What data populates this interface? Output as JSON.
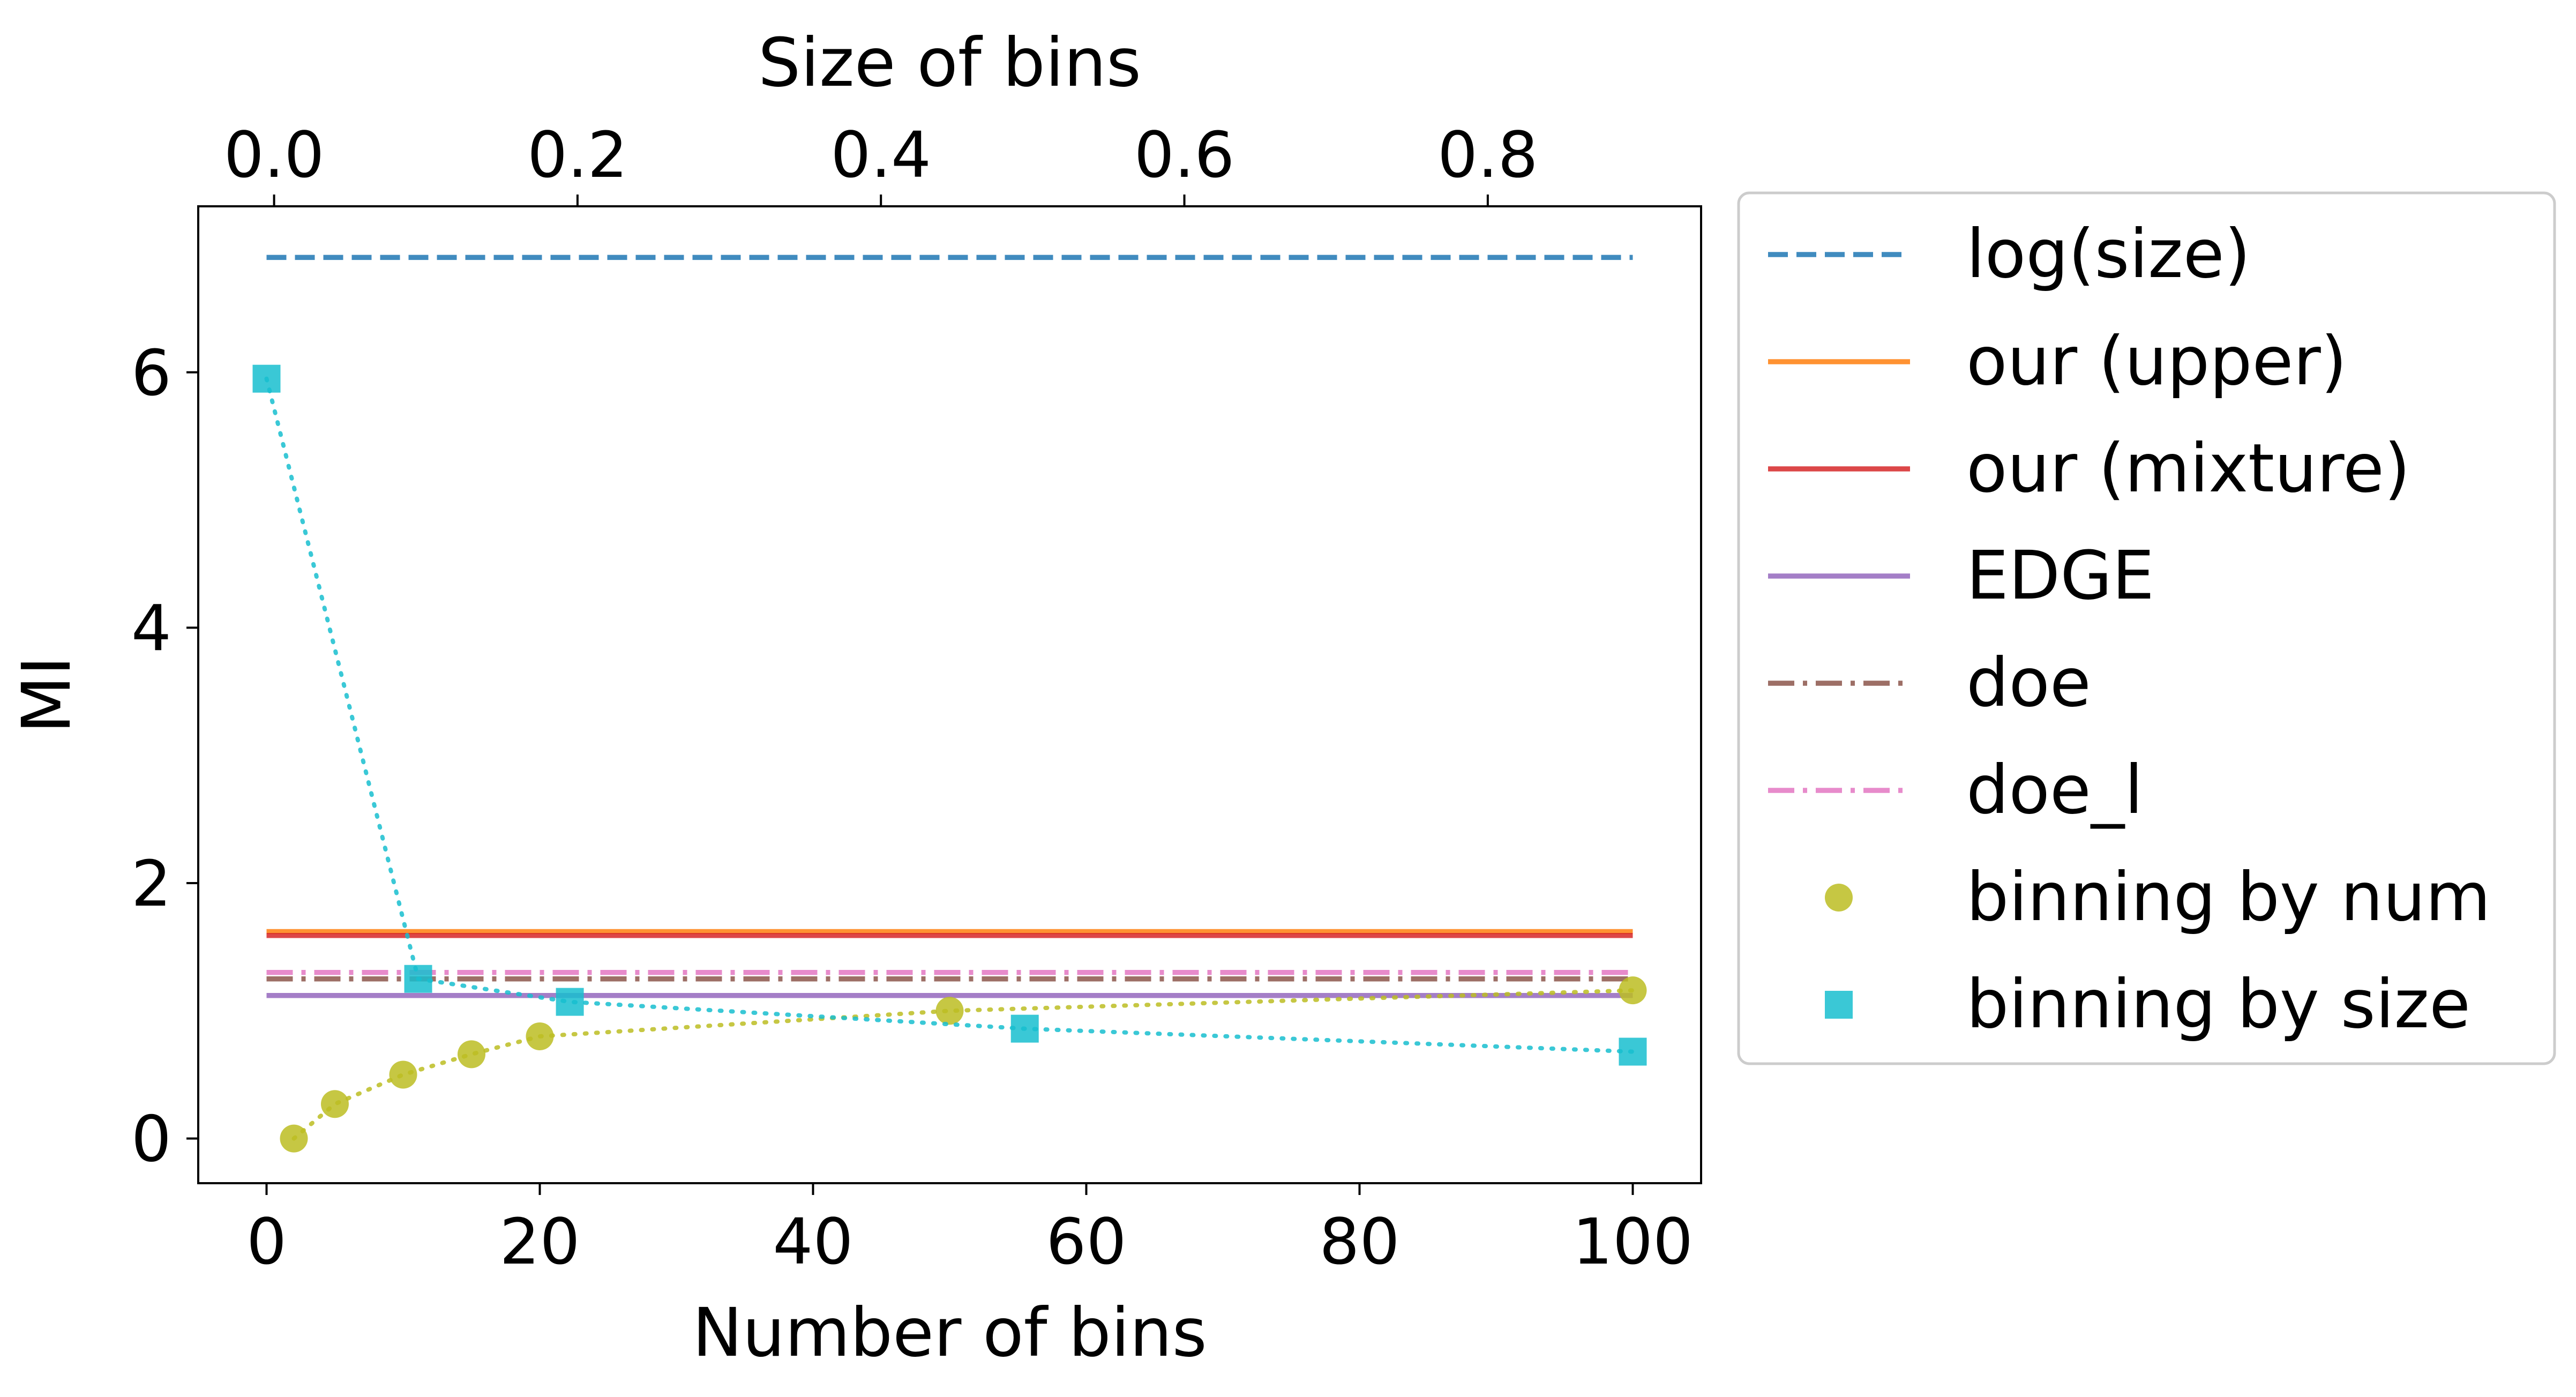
{
  "chart_data": {
    "type": "line",
    "xlabel": "Number of bins",
    "ylabel": "MI",
    "x2label": "Size of bins",
    "xlim": [
      -5,
      105
    ],
    "ylim": [
      -0.35,
      7.3
    ],
    "x2lim": [
      -0.05,
      0.9406
    ],
    "xticks": [
      0,
      20,
      40,
      60,
      80,
      100
    ],
    "xtick_labels": [
      "0",
      "20",
      "40",
      "60",
      "80",
      "100"
    ],
    "yticks": [
      0,
      2,
      4,
      6
    ],
    "ytick_labels": [
      "0",
      "2",
      "4",
      "6"
    ],
    "x2ticks": [
      0.0,
      0.2,
      0.4,
      0.6,
      0.8
    ],
    "x2tick_labels": [
      "0.0",
      "0.2",
      "0.4",
      "0.6",
      "0.8"
    ],
    "grid": false,
    "legend_position": "outside-right",
    "series": [
      {
        "name": "log(size)",
        "kind": "hline",
        "style": "dashed",
        "color": "#1f77b4",
        "x": [
          0,
          100
        ],
        "y": [
          6.9,
          6.9
        ]
      },
      {
        "name": "our (upper)",
        "kind": "hline",
        "style": "solid",
        "color": "#ff7f0e",
        "x": [
          0,
          100
        ],
        "y": [
          1.62,
          1.62
        ]
      },
      {
        "name": "our (mixture)",
        "kind": "hline",
        "style": "solid",
        "color": "#d62728",
        "x": [
          0,
          100
        ],
        "y": [
          1.59,
          1.59
        ]
      },
      {
        "name": "EDGE",
        "kind": "hline",
        "style": "solid",
        "color": "#9467bd",
        "x": [
          0,
          100
        ],
        "y": [
          1.12,
          1.12
        ]
      },
      {
        "name": "doe",
        "kind": "hline",
        "style": "dashdot",
        "color": "#8c564b",
        "x": [
          0,
          100
        ],
        "y": [
          1.25,
          1.25
        ]
      },
      {
        "name": "doe_l",
        "kind": "hline",
        "style": "dashdot",
        "color": "#e377c2",
        "x": [
          0,
          100
        ],
        "y": [
          1.3,
          1.3
        ]
      },
      {
        "name": "binning by num",
        "kind": "scatter",
        "marker": "circle",
        "color": "#bcbd22",
        "x": [
          2,
          5,
          10,
          15,
          20,
          50,
          100
        ],
        "y": [
          0.0,
          0.27,
          0.5,
          0.66,
          0.8,
          1.0,
          1.16
        ]
      },
      {
        "name": "binning by size",
        "kind": "scatter",
        "marker": "square",
        "color": "#17becf",
        "x": [
          0,
          11.1,
          22.2,
          55.5,
          100
        ],
        "y": [
          5.95,
          1.25,
          1.07,
          0.86,
          0.68
        ]
      }
    ]
  }
}
